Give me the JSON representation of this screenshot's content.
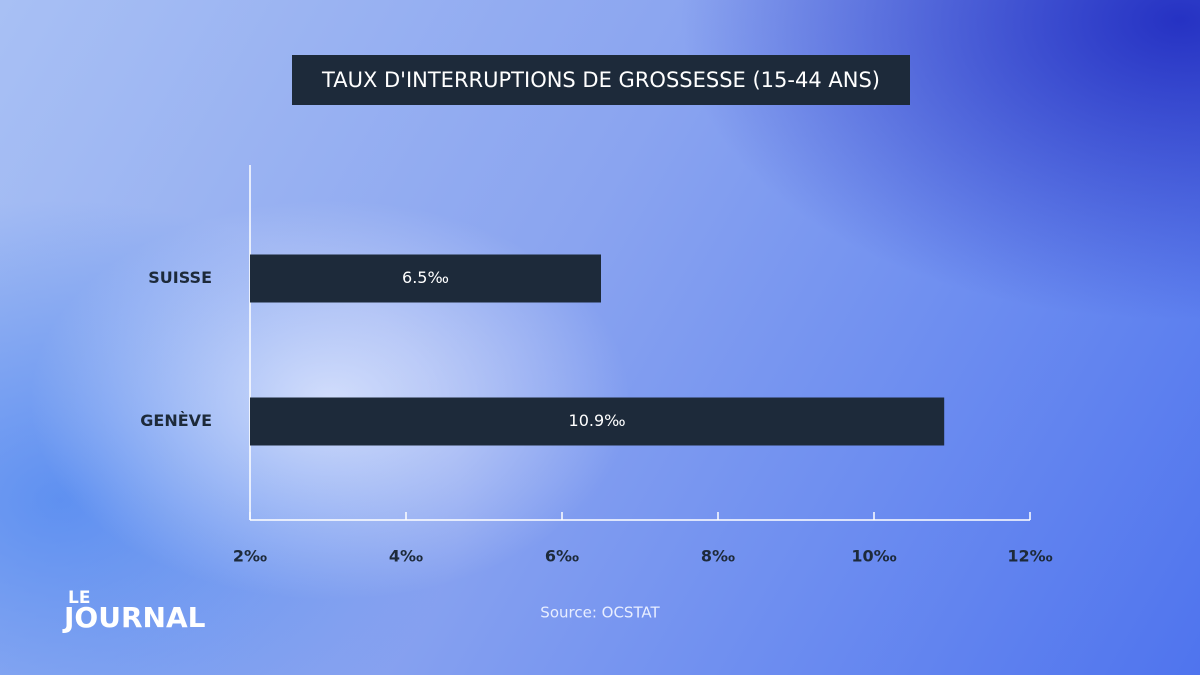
{
  "chart_data": {
    "type": "bar",
    "orientation": "horizontal",
    "title": "TAUX D'INTERRUPTIONS DE GROSSESSE (15-44 ANS)",
    "categories": [
      "SUISSE",
      "GENÈVE"
    ],
    "values": [
      6.5,
      10.9
    ],
    "value_labels": [
      "6.5‰",
      "10.9‰"
    ],
    "color": "#1d2a3a",
    "xlim": [
      2,
      12
    ],
    "xticks": [
      {
        "value": 2,
        "label": "2‰"
      },
      {
        "value": 4,
        "label": "4‰"
      },
      {
        "value": 6,
        "label": "6‰"
      },
      {
        "value": 8,
        "label": "8‰"
      },
      {
        "value": 10,
        "label": "10‰"
      },
      {
        "value": 12,
        "label": "12‰"
      }
    ],
    "source": "Source: OCSTAT"
  },
  "branding": {
    "line1": "LE",
    "line2": "JOURNAL"
  }
}
